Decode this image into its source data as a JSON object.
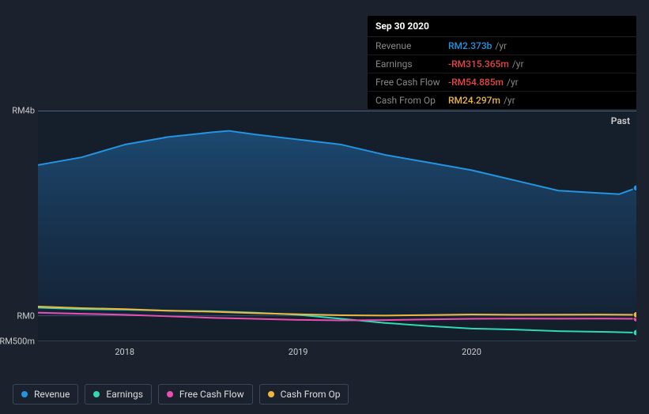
{
  "tooltip": {
    "date": "Sep 30 2020",
    "rows": [
      {
        "label": "Revenue",
        "value": "RM2.373b",
        "unit": "/yr",
        "color": "#2394df"
      },
      {
        "label": "Earnings",
        "value": "-RM315.365m",
        "unit": "/yr",
        "color": "#e64545"
      },
      {
        "label": "Free Cash Flow",
        "value": "-RM54.885m",
        "unit": "/yr",
        "color": "#e64545"
      },
      {
        "label": "Cash From Op",
        "value": "RM24.297m",
        "unit": "/yr",
        "color": "#eeb63e"
      }
    ]
  },
  "chart": {
    "type": "area",
    "past_label": "Past",
    "y_axis": {
      "min": -500,
      "max": 4000,
      "unit_m": "m",
      "unit_b": "b",
      "prefix": "RM",
      "ticks": [
        {
          "v": 4000,
          "label": "RM4b"
        },
        {
          "v": 0,
          "label": "RM0"
        },
        {
          "v": -500,
          "label": "-RM500m"
        }
      ]
    },
    "x_axis": {
      "min": 2017.5,
      "max": 2020.95,
      "ticks": [
        {
          "v": 2018,
          "label": "2018"
        },
        {
          "v": 2019,
          "label": "2019"
        },
        {
          "v": 2020,
          "label": "2020"
        }
      ]
    },
    "series": [
      {
        "name": "Revenue",
        "color": "#2394df",
        "fill": true,
        "points": [
          [
            2017.5,
            2950
          ],
          [
            2017.75,
            3100
          ],
          [
            2018,
            3350
          ],
          [
            2018.25,
            3500
          ],
          [
            2018.5,
            3590
          ],
          [
            2018.6,
            3620
          ],
          [
            2018.75,
            3550
          ],
          [
            2019,
            3450
          ],
          [
            2019.25,
            3350
          ],
          [
            2019.5,
            3150
          ],
          [
            2019.75,
            3000
          ],
          [
            2020,
            2850
          ],
          [
            2020.25,
            2650
          ],
          [
            2020.5,
            2450
          ],
          [
            2020.7,
            2410
          ],
          [
            2020.85,
            2380
          ],
          [
            2020.95,
            2500
          ]
        ]
      },
      {
        "name": "Earnings",
        "color": "#30d9b3",
        "fill": false,
        "points": [
          [
            2017.5,
            160
          ],
          [
            2017.75,
            130
          ],
          [
            2018,
            120
          ],
          [
            2018.25,
            100
          ],
          [
            2018.5,
            90
          ],
          [
            2018.75,
            60
          ],
          [
            2019,
            20
          ],
          [
            2019.25,
            -60
          ],
          [
            2019.5,
            -140
          ],
          [
            2019.75,
            -200
          ],
          [
            2020,
            -250
          ],
          [
            2020.25,
            -270
          ],
          [
            2020.5,
            -300
          ],
          [
            2020.75,
            -315
          ],
          [
            2020.95,
            -330
          ]
        ]
      },
      {
        "name": "Free Cash Flow",
        "color": "#e84fb1",
        "fill": false,
        "points": [
          [
            2017.5,
            60
          ],
          [
            2017.75,
            40
          ],
          [
            2018,
            20
          ],
          [
            2018.25,
            -10
          ],
          [
            2018.5,
            -40
          ],
          [
            2018.75,
            -60
          ],
          [
            2019,
            -80
          ],
          [
            2019.25,
            -90
          ],
          [
            2019.5,
            -85
          ],
          [
            2019.75,
            -70
          ],
          [
            2020,
            -60
          ],
          [
            2020.25,
            -55
          ],
          [
            2020.5,
            -58
          ],
          [
            2020.75,
            -55
          ],
          [
            2020.95,
            -60
          ]
        ]
      },
      {
        "name": "Cash From Op",
        "color": "#eeb63e",
        "fill": false,
        "points": [
          [
            2017.5,
            180
          ],
          [
            2017.75,
            150
          ],
          [
            2018,
            130
          ],
          [
            2018.25,
            100
          ],
          [
            2018.5,
            80
          ],
          [
            2018.75,
            50
          ],
          [
            2019,
            30
          ],
          [
            2019.25,
            10
          ],
          [
            2019.5,
            5
          ],
          [
            2019.75,
            15
          ],
          [
            2020,
            25
          ],
          [
            2020.25,
            20
          ],
          [
            2020.5,
            22
          ],
          [
            2020.75,
            24
          ],
          [
            2020.95,
            20
          ]
        ]
      }
    ],
    "marker_x": 2020.95,
    "background_inner": "#151e2b",
    "grid_color": "#4a6178",
    "line_width": 2
  },
  "legend": [
    {
      "label": "Revenue",
      "color": "#2394df"
    },
    {
      "label": "Earnings",
      "color": "#30d9b3"
    },
    {
      "label": "Free Cash Flow",
      "color": "#e84fb1"
    },
    {
      "label": "Cash From Op",
      "color": "#eeb63e"
    }
  ]
}
